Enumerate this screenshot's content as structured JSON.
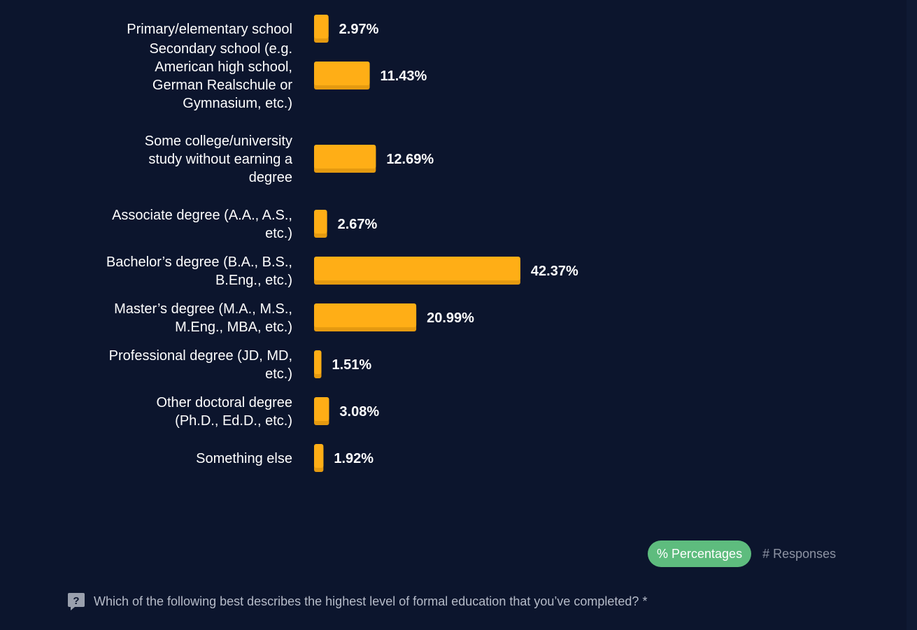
{
  "chart_data": {
    "type": "bar",
    "orientation": "horizontal",
    "categories": [
      "Primary/elementary school",
      "Secondary school (e.g. American high school, German Realschule or Gymnasium, etc.)",
      "Some college/university study without earning a degree",
      "Associate degree (A.A., A.S., etc.)",
      "Bachelor’s degree (B.A., B.S., B.Eng., etc.)",
      "Master’s degree (M.A., M.S., M.Eng., MBA, etc.)",
      "Professional degree (JD, MD, etc.)",
      "Other doctoral degree (Ph.D., Ed.D., etc.)",
      "Something else"
    ],
    "category_lines": [
      [
        "Primary/elementary school"
      ],
      [
        "Secondary school (e.g.",
        "American high school,",
        "German Realschule or",
        "Gymnasium, etc.)"
      ],
      [
        "Some college/university",
        "study without earning a",
        "degree"
      ],
      [
        "Associate degree (A.A., A.S.,",
        "etc.)"
      ],
      [
        "Bachelor’s degree (B.A., B.S.,",
        "B.Eng., etc.)"
      ],
      [
        "Master’s degree (M.A., M.S.,",
        "M.Eng., MBA, etc.)"
      ],
      [
        "Professional degree (JD, MD,",
        "etc.)"
      ],
      [
        "Other doctoral degree",
        "(Ph.D., Ed.D., etc.)"
      ],
      [
        "Something else"
      ]
    ],
    "values": [
      2.97,
      11.43,
      12.69,
      2.67,
      42.37,
      20.99,
      1.51,
      3.08,
      1.92
    ],
    "value_labels": [
      "2.97%",
      "11.43%",
      "12.69%",
      "2.67%",
      "42.37%",
      "20.99%",
      "1.51%",
      "3.08%",
      "1.92%"
    ],
    "unit": "%",
    "bar_color": "#ffae16",
    "bar_shadow_color": "#e59a10",
    "grid": false,
    "title": "",
    "xlabel": "",
    "ylabel": ""
  },
  "controls": {
    "percentages_label": "% Percentages",
    "responses_label": "# Responses",
    "active": "percentages"
  },
  "question": {
    "icon": "question-mark-icon",
    "text": "Which of the following best describes the highest level of formal education that you’ve completed? *"
  },
  "colors": {
    "background": "#0c152d",
    "toggle_active": "#5ebc7e",
    "muted_text": "#8d93a3"
  }
}
